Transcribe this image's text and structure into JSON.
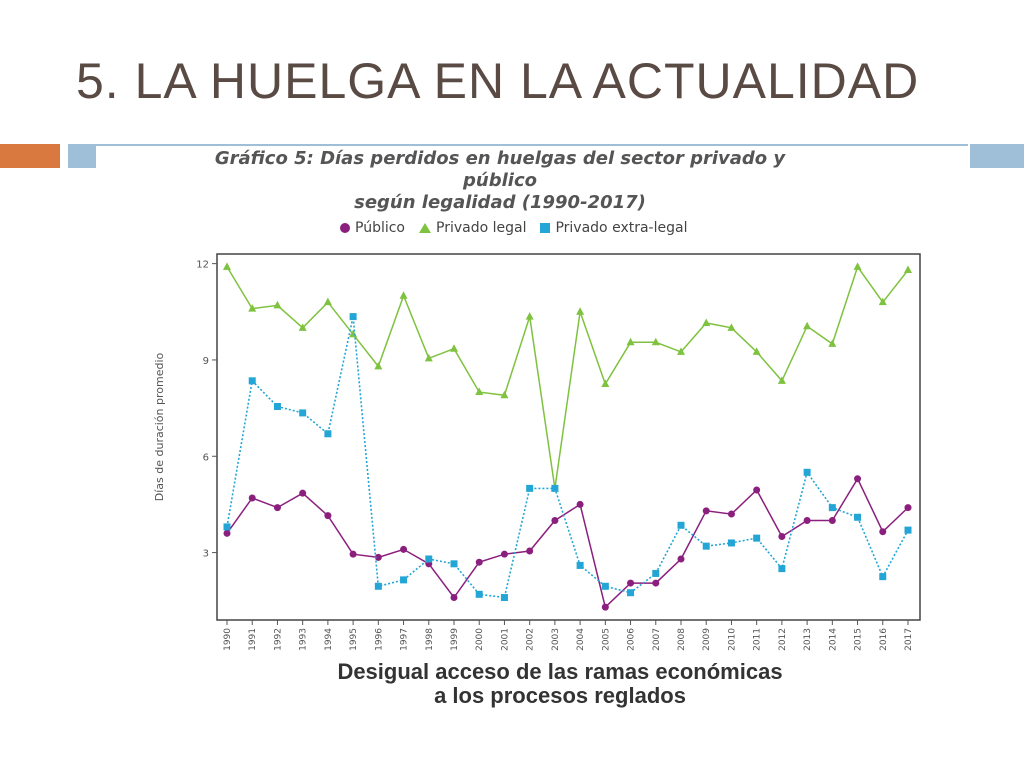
{
  "slide": {
    "title": "5. LA HUELGA EN LA ACTUALIDAD",
    "colors": {
      "title": "#5a4a44",
      "accent_orange": "#d9783f",
      "accent_blue": "#9fbfd8"
    }
  },
  "chart_data": {
    "type": "line",
    "title_line1": "Gráfico 5: Días perdidos en huelgas del sector privado y público",
    "title_line2": "según legalidad  (1990-2017)",
    "xlabel": "",
    "ylabel": "Días de duración promedio",
    "x": [
      "1990",
      "1991",
      "1992",
      "1993",
      "1994",
      "1995",
      "1996",
      "1997",
      "1998",
      "1999",
      "2000",
      "2001",
      "2002",
      "2003",
      "2004",
      "2005",
      "2006",
      "2007",
      "2008",
      "2009",
      "2010",
      "2011",
      "2012",
      "2013",
      "2014",
      "2015",
      "2016",
      "2017"
    ],
    "yticks": [
      "3",
      "6",
      "9",
      "12"
    ],
    "ylim": [
      0.9,
      12.3
    ],
    "grid": false,
    "legend_position": "top",
    "series": [
      {
        "name": "Público",
        "color": "#8b1f7e",
        "marker": "circle",
        "line": "solid",
        "values": [
          3.6,
          4.7,
          4.4,
          4.85,
          4.15,
          2.95,
          2.85,
          3.1,
          2.65,
          1.6,
          2.7,
          2.95,
          3.05,
          4.0,
          4.5,
          1.3,
          2.05,
          2.05,
          2.8,
          4.3,
          4.2,
          4.95,
          3.5,
          4.0,
          4.0,
          5.3,
          3.65,
          4.4
        ]
      },
      {
        "name": "Privado legal",
        "color": "#7ec23f",
        "marker": "triangle",
        "line": "solid",
        "values": [
          11.9,
          10.6,
          10.7,
          10.0,
          10.8,
          9.8,
          8.8,
          11.0,
          9.05,
          9.35,
          8.0,
          7.9,
          10.35,
          5.0,
          10.5,
          8.25,
          9.55,
          9.55,
          9.25,
          10.15,
          10.0,
          9.25,
          8.35,
          10.05,
          9.5,
          11.9,
          10.8,
          11.8
        ]
      },
      {
        "name": "Privado extra-legal",
        "color": "#23a6d5",
        "marker": "square",
        "line": "dotted",
        "values": [
          3.8,
          8.35,
          7.55,
          7.35,
          6.7,
          10.35,
          1.95,
          2.15,
          2.8,
          2.65,
          1.7,
          1.6,
          5.0,
          5.0,
          2.6,
          1.95,
          1.75,
          2.35,
          3.85,
          3.2,
          3.3,
          3.45,
          2.5,
          5.5,
          4.4,
          4.1,
          2.25,
          3.7
        ]
      }
    ],
    "caption_line1": "Desigual acceso de las ramas económicas",
    "caption_line2": "a los procesos reglados"
  }
}
